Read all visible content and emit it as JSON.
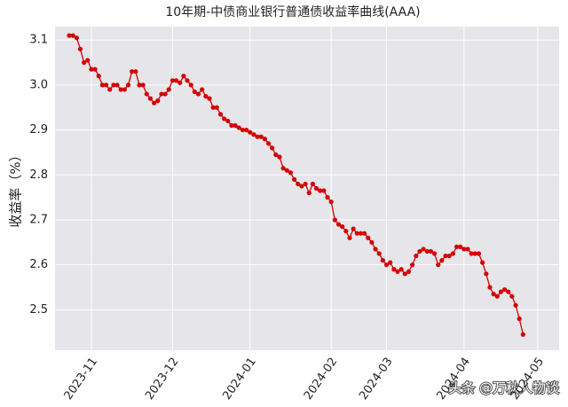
{
  "chart_data": {
    "type": "line",
    "title": "10年期-中债商业银行普通债收益率曲线(AAA)",
    "y_label": "收益率（%）",
    "watermark": "头条 @万秋人物谈",
    "categories": [
      null,
      null,
      null,
      null,
      null,
      null,
      "2023-11",
      null,
      null,
      null,
      null,
      null,
      null,
      null,
      null,
      null,
      null,
      null,
      null,
      null,
      null,
      null,
      null,
      null,
      null,
      null,
      null,
      null,
      "2023-12",
      null,
      null,
      null,
      null,
      null,
      null,
      null,
      null,
      null,
      null,
      null,
      null,
      null,
      null,
      null,
      null,
      null,
      null,
      null,
      null,
      "2024-01",
      null,
      null,
      null,
      null,
      null,
      null,
      null,
      null,
      null,
      null,
      null,
      null,
      null,
      null,
      null,
      null,
      null,
      null,
      null,
      null,
      null,
      "2024-02",
      null,
      null,
      null,
      null,
      null,
      null,
      null,
      null,
      null,
      null,
      null,
      null,
      null,
      null,
      "2024-03",
      null,
      null,
      null,
      null,
      null,
      null,
      null,
      null,
      null,
      null,
      null,
      null,
      null,
      null,
      null,
      null,
      null,
      null,
      null,
      null,
      "2024-04",
      null,
      null,
      null,
      null,
      null,
      null,
      null,
      null,
      null,
      null,
      null,
      null,
      null,
      null,
      null,
      null,
      null,
      null,
      null,
      "2024-05"
    ],
    "values": [
      3.11,
      3.11,
      3.105,
      3.08,
      3.05,
      3.055,
      3.035,
      3.035,
      3.02,
      3.0,
      3.0,
      2.99,
      3.0,
      3.0,
      2.99,
      2.99,
      3.0,
      3.03,
      3.03,
      3.0,
      3.0,
      2.98,
      2.97,
      2.96,
      2.965,
      2.98,
      2.98,
      2.99,
      3.01,
      3.01,
      3.005,
      3.02,
      3.01,
      3.0,
      2.985,
      2.98,
      2.99,
      2.975,
      2.97,
      2.95,
      2.95,
      2.935,
      2.925,
      2.92,
      2.91,
      2.91,
      2.905,
      2.9,
      2.9,
      2.895,
      2.89,
      2.885,
      2.885,
      2.88,
      2.87,
      2.86,
      2.845,
      2.84,
      2.815,
      2.81,
      2.805,
      2.79,
      2.78,
      2.775,
      2.78,
      2.76,
      2.78,
      2.77,
      2.765,
      2.765,
      2.75,
      2.74,
      2.7,
      2.69,
      2.685,
      2.675,
      2.66,
      2.68,
      2.67,
      2.67,
      2.67,
      2.66,
      2.65,
      2.635,
      2.625,
      2.61,
      2.6,
      2.605,
      2.59,
      2.585,
      2.59,
      2.58,
      2.585,
      2.6,
      2.62,
      2.63,
      2.635,
      2.63,
      2.63,
      2.625,
      2.6,
      2.61,
      2.62,
      2.62,
      2.625,
      2.64,
      2.64,
      2.635,
      2.635,
      2.625,
      2.625,
      2.625,
      2.605,
      2.58,
      2.55,
      2.535,
      2.53,
      2.54,
      2.545,
      2.54,
      2.53,
      2.51,
      2.48,
      2.445,
      null,
      null,
      null,
      null
    ],
    "color": "#d40000",
    "ylim": [
      2.41,
      3.13
    ],
    "yticks": [
      2.5,
      2.6,
      2.7,
      2.8,
      2.9,
      {
        "value": 3,
        "label": "3.0"
      },
      3.1
    ],
    "grid": true
  }
}
